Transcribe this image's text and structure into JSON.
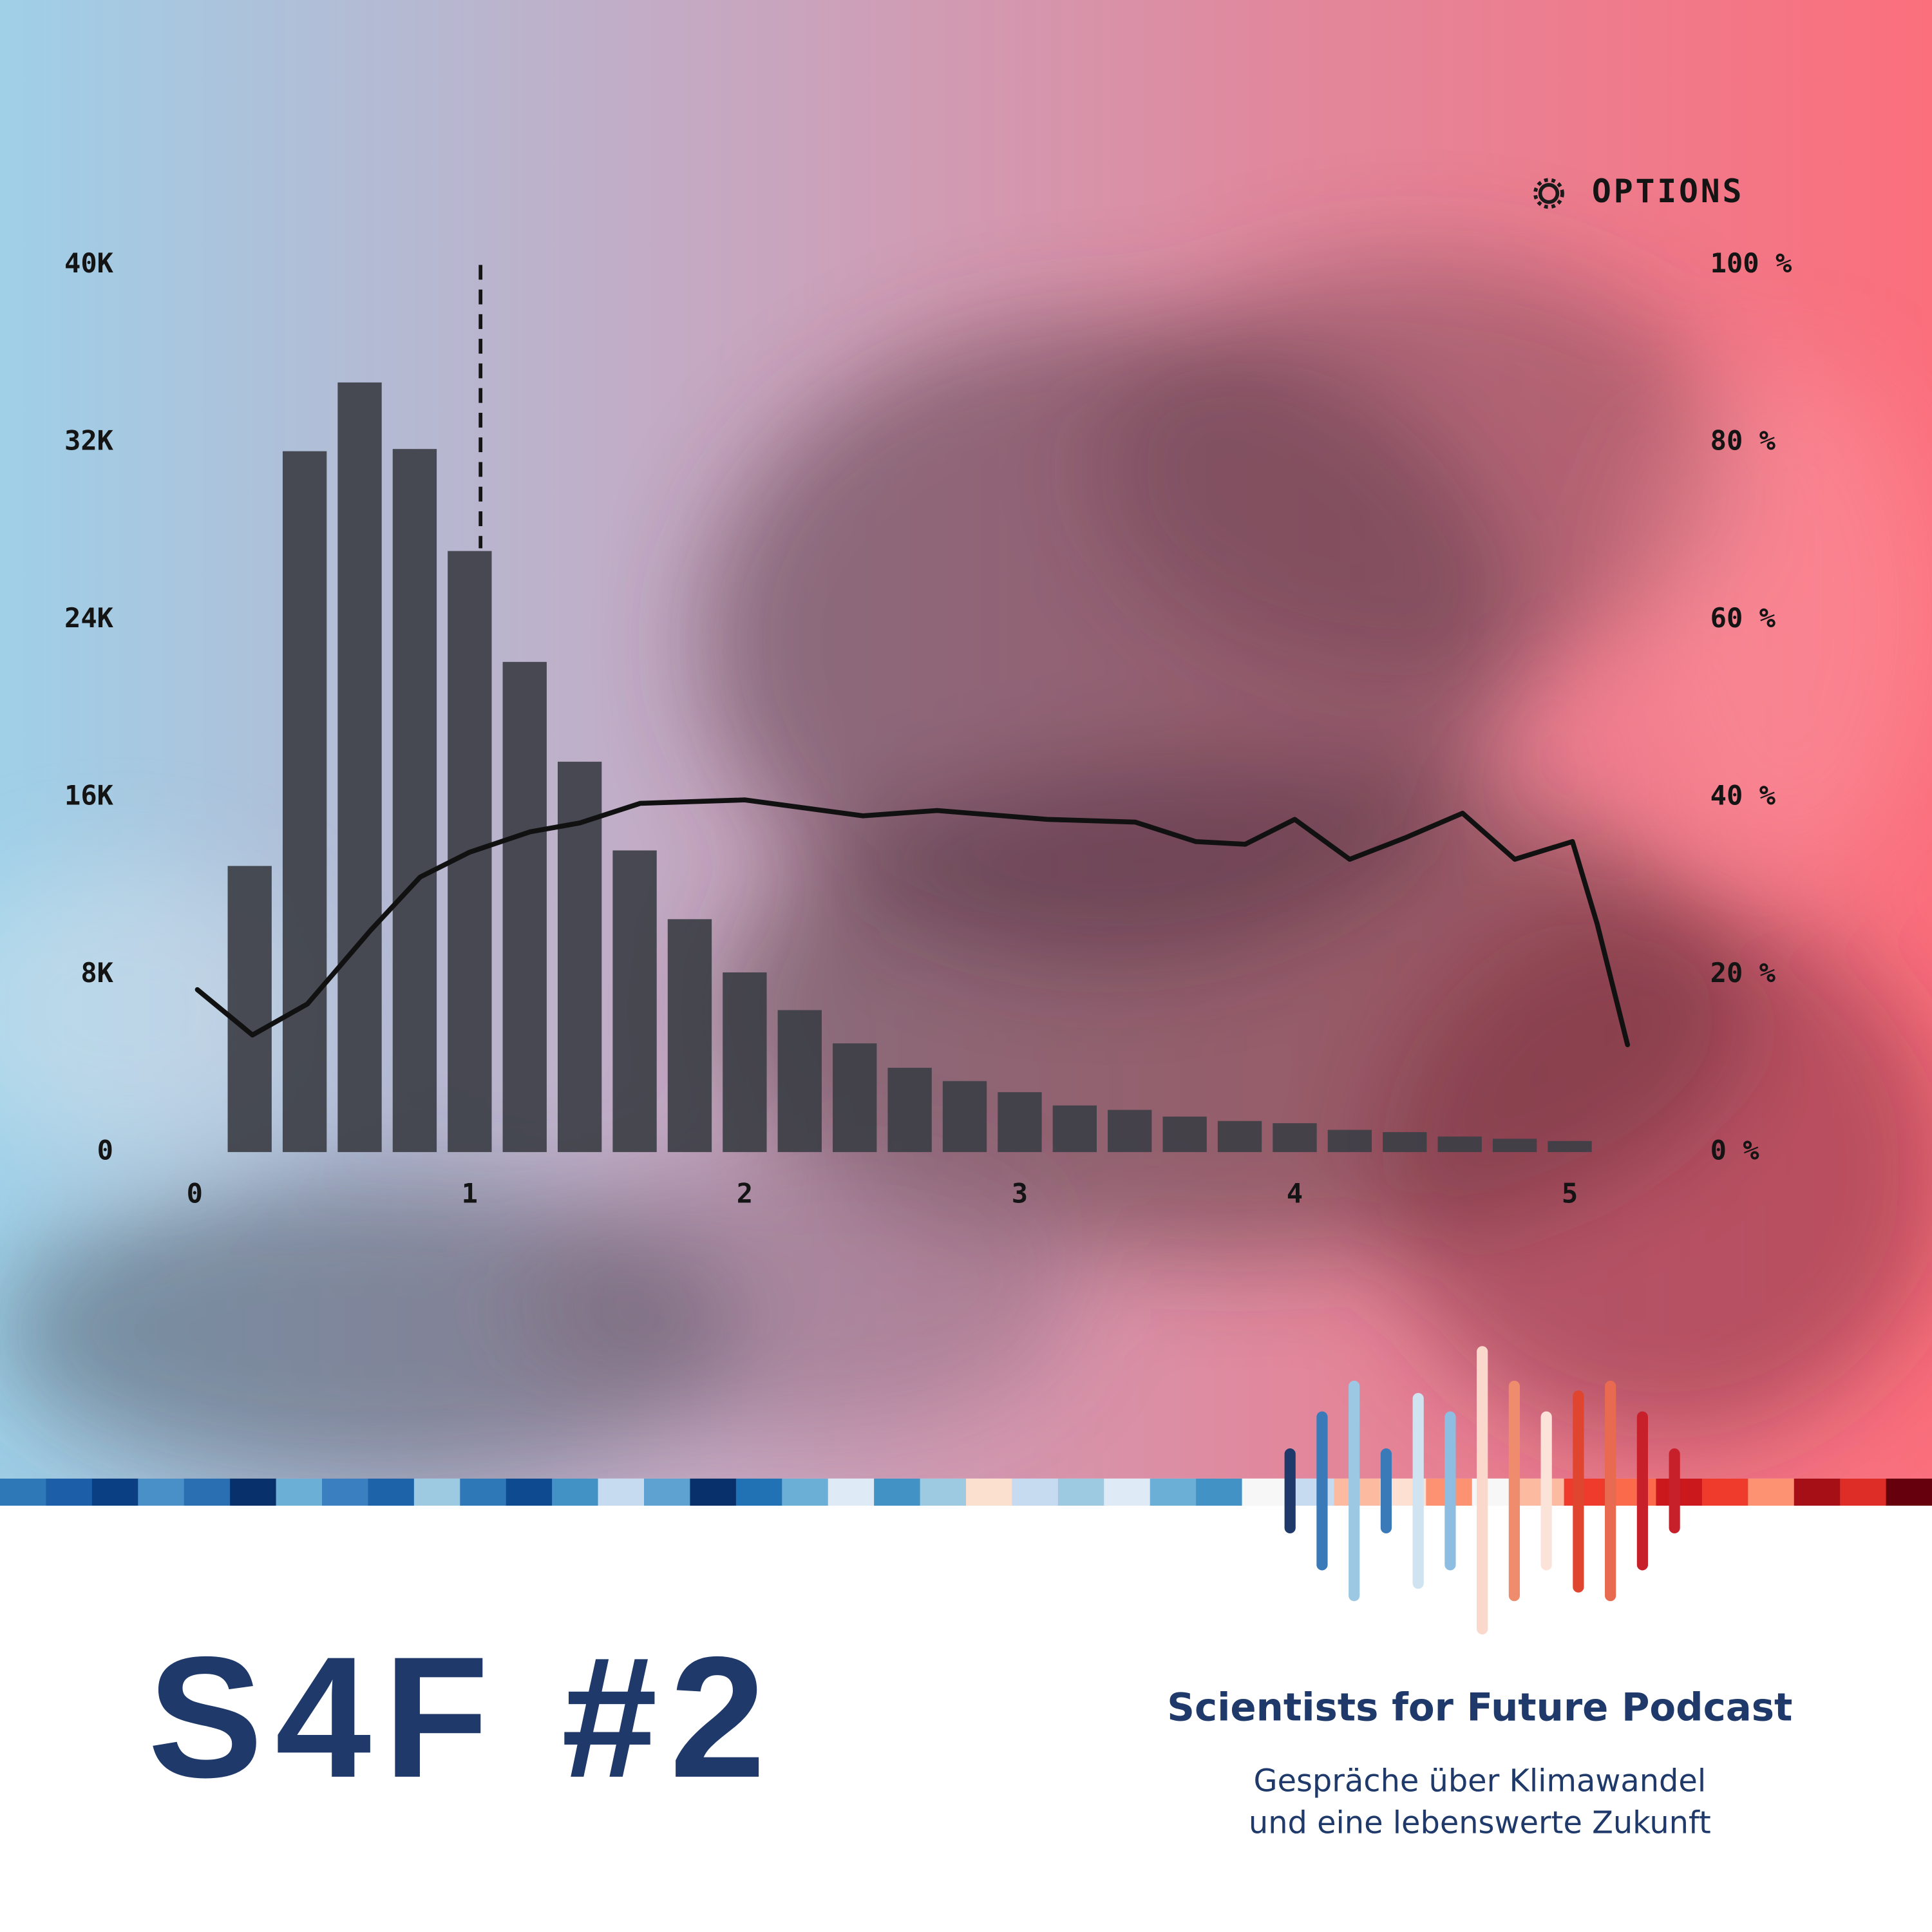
{
  "chart_data": {
    "type": "histogram",
    "annotations": [
      "OPTIONS"
    ],
    "bins": [
      0.1,
      0.3,
      0.5,
      0.7,
      0.9,
      1.1,
      1.3,
      1.5,
      1.7,
      1.9,
      2.1,
      2.3,
      2.5,
      2.7,
      2.9,
      3.1,
      3.3,
      3.5,
      3.7,
      3.9,
      4.1,
      4.3,
      4.5,
      4.7,
      4.9,
      5.1
    ],
    "series": [
      {
        "type": "histogram",
        "color": "#3d3f47",
        "values": [
          12900,
          31600,
          34700,
          31700,
          27100,
          22100,
          17600,
          13600,
          10500,
          8100,
          6400,
          4900,
          3800,
          3200,
          2700,
          2100,
          1900,
          1600,
          1400,
          1300,
          1000,
          900,
          700,
          600,
          500
        ]
      },
      {
        "type": "line",
        "axis": "y2",
        "color": "#111111",
        "x": [
          0.01,
          0.21,
          0.41,
          0.64,
          0.82,
          1.0,
          1.22,
          1.4,
          1.62,
          2.0,
          2.43,
          2.7,
          3.1,
          3.42,
          3.64,
          3.82,
          4.0,
          4.2,
          4.4,
          4.61,
          4.8,
          5.01,
          5.1,
          5.21
        ],
        "values": [
          18.3,
          13.2,
          16.7,
          25,
          31,
          33.8,
          36.1,
          37.1,
          39.3,
          39.7,
          37.9,
          38.5,
          37.5,
          37.2,
          35,
          34.7,
          37.5,
          33,
          35.4,
          38.2,
          33,
          35,
          25.7,
          12.1
        ]
      }
    ],
    "xlim": [
      0,
      5.5
    ],
    "xticks": [
      0,
      1,
      2,
      3,
      4,
      5
    ],
    "ylim": [
      0,
      40000
    ],
    "yticks": [
      0,
      {
        "value": 8000,
        "label": "8K"
      },
      {
        "value": 16000,
        "label": "16K"
      },
      {
        "value": 24000,
        "label": "24K"
      },
      {
        "value": 32000,
        "label": "32K"
      },
      {
        "value": 40000,
        "label": "40K"
      }
    ],
    "y2lim": [
      0,
      100
    ],
    "y2ticks": [
      {
        "value": 0,
        "label": "0 %"
      },
      {
        "value": 20,
        "label": "20 %"
      },
      {
        "value": 40,
        "label": "40 %"
      },
      {
        "value": 60,
        "label": "60 %"
      },
      {
        "value": 80,
        "label": "80 %"
      },
      {
        "value": 100,
        "label": "100 %"
      }
    ],
    "grid": false
  },
  "cover": {
    "title": "S4F #2",
    "podcast": "Scientists for Future Podcast",
    "tagline": [
      "Gespräche über Klimawandel",
      "und eine lebenswerte Zukunft"
    ]
  }
}
